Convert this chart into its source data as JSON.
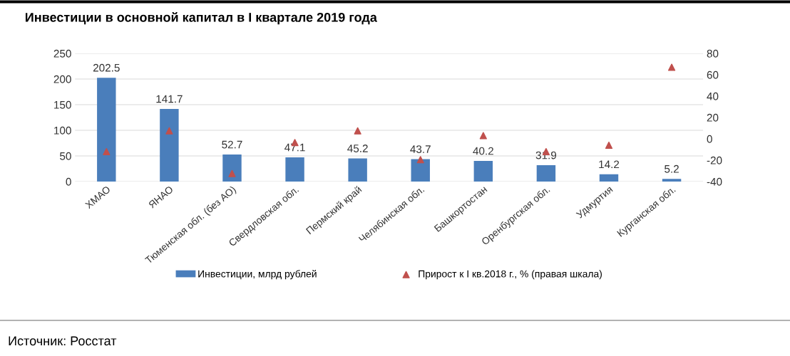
{
  "chart_data": {
    "type": "bar",
    "title": "Инвестиции в основной капитал в I квартале 2019 года",
    "categories": [
      "ХМАО",
      "ЯНАО",
      "Тюменская обл. (без АО)",
      "Свердловская обл.",
      "Пермский край",
      "Челябинская обл.",
      "Башкортостан",
      "Оренбургская обл.",
      "Удмуртия",
      "Курганская обл."
    ],
    "series": [
      {
        "name": "Инвестиции, млрд рублей",
        "color": "#4a7ebb",
        "values": [
          202.5,
          141.7,
          52.7,
          47.1,
          45.2,
          43.7,
          40.2,
          31.9,
          14.2,
          5.2
        ],
        "value_labels": [
          "202.5",
          "141.7",
          "52.7",
          "47.1",
          "45.2",
          "43.7",
          "40.2",
          "31.9",
          "14.2",
          "5.2"
        ]
      },
      {
        "name": "Прирост к I кв.2018 г., % (правая шкала)",
        "type": "scatter",
        "axis": "y2",
        "color": "#c0504d",
        "values": [
          -12,
          7.5,
          -32.5,
          -3.5,
          7.5,
          -19.5,
          3,
          -12,
          -6,
          67
        ]
      }
    ],
    "ylim": [
      0,
      250
    ],
    "yticks": [
      0,
      50,
      100,
      150,
      200,
      250
    ],
    "y2lim": [
      -40,
      80
    ],
    "y2ticks": [
      -40,
      -20,
      0,
      20,
      40,
      60,
      80
    ],
    "grid": "y",
    "legend": "bottom",
    "marker": "triangle",
    "annotations": [
      "Источник: Росстат"
    ]
  }
}
